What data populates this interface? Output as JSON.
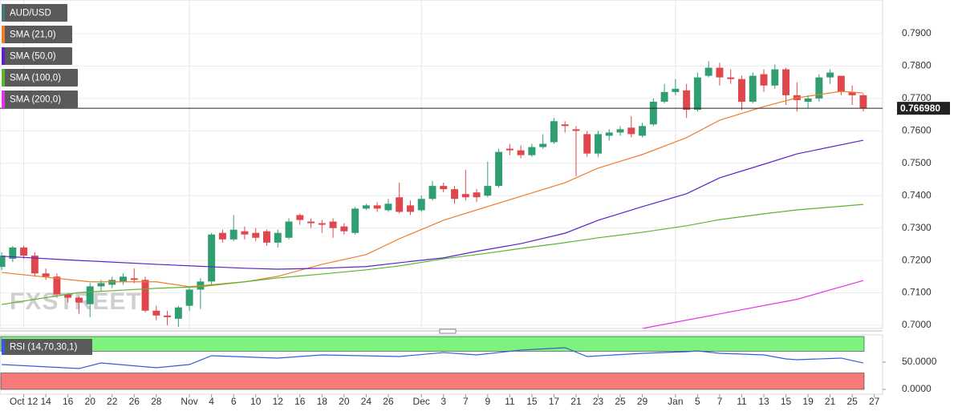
{
  "chart_data": [
    {
      "type": "candlestick",
      "watermark": "FXSTREET",
      "up_color": "#2f9e70",
      "down_color": "#e0474c",
      "xlim": [
        -0.15,
        79.75
      ],
      "ylim": [
        0.699,
        0.8004
      ],
      "yticks": [
        {
          "value": 0.7,
          "label": "0.7000"
        },
        {
          "value": 0.71,
          "label": "0.7100"
        },
        {
          "value": 0.72,
          "label": "0.7200"
        },
        {
          "value": 0.73,
          "label": "0.7300"
        },
        {
          "value": 0.74,
          "label": "0.7400"
        },
        {
          "value": 0.75,
          "label": "0.7500"
        },
        {
          "value": 0.76,
          "label": "0.7600"
        },
        {
          "value": 0.77,
          "label": "0.7700"
        },
        {
          "value": 0.78,
          "label": "0.7800"
        },
        {
          "value": 0.79,
          "label": "0.7900"
        }
      ],
      "xticks": [
        {
          "value": 2,
          "label": "Oct 12"
        },
        {
          "value": 4,
          "label": "14"
        },
        {
          "value": 6,
          "label": "16"
        },
        {
          "value": 8,
          "label": "20"
        },
        {
          "value": 10,
          "label": "22"
        },
        {
          "value": 12,
          "label": "26"
        },
        {
          "value": 14,
          "label": "28"
        },
        {
          "value": 17,
          "label": "Nov"
        },
        {
          "value": 19,
          "label": "4"
        },
        {
          "value": 21,
          "label": "6"
        },
        {
          "value": 23,
          "label": "10"
        },
        {
          "value": 25,
          "label": "12"
        },
        {
          "value": 27,
          "label": "16"
        },
        {
          "value": 29,
          "label": "18"
        },
        {
          "value": 31,
          "label": "20"
        },
        {
          "value": 33,
          "label": "24"
        },
        {
          "value": 35,
          "label": "26"
        },
        {
          "value": 38,
          "label": "Dec"
        },
        {
          "value": 40,
          "label": "3"
        },
        {
          "value": 42,
          "label": "7"
        },
        {
          "value": 44,
          "label": "9"
        },
        {
          "value": 46,
          "label": "11"
        },
        {
          "value": 48,
          "label": "15"
        },
        {
          "value": 50,
          "label": "17"
        },
        {
          "value": 52,
          "label": "21"
        },
        {
          "value": 54,
          "label": "23"
        },
        {
          "value": 56,
          "label": "25"
        },
        {
          "value": 58,
          "label": "29"
        },
        {
          "value": 61,
          "label": "Jan"
        },
        {
          "value": 63,
          "label": "5"
        },
        {
          "value": 65,
          "label": "7"
        },
        {
          "value": 67,
          "label": "11"
        },
        {
          "value": 69,
          "label": "13"
        },
        {
          "value": 71,
          "label": "15"
        },
        {
          "value": 73,
          "label": "19"
        },
        {
          "value": 75,
          "label": "21"
        },
        {
          "value": 77,
          "label": "25"
        },
        {
          "value": 79,
          "label": "27"
        }
      ],
      "grid": true,
      "price_line": {
        "value": 0.76698,
        "label": "0.766980"
      },
      "series": [
        {
          "name": "AUD/USD",
          "color": "#467a7a",
          "x": [
            0,
            1,
            2,
            3,
            4,
            5,
            6,
            7,
            8,
            9,
            10,
            11,
            12,
            13,
            14,
            15,
            16,
            17,
            18,
            19,
            20,
            21,
            22,
            23,
            24,
            25,
            26,
            27,
            28,
            29,
            30,
            31,
            32,
            33,
            34,
            35,
            36,
            37,
            38,
            39,
            40,
            41,
            42,
            43,
            44,
            45,
            46,
            47,
            48,
            49,
            50,
            51,
            52,
            53,
            54,
            55,
            56,
            57,
            58,
            59,
            60,
            61,
            62,
            63,
            64,
            65,
            66,
            67,
            68,
            69,
            70,
            71,
            72,
            73,
            74,
            75,
            76,
            77,
            78
          ],
          "open": [
            0.718,
            0.7205,
            0.724,
            0.7215,
            0.716,
            0.715,
            0.7095,
            0.7085,
            0.7065,
            0.712,
            0.7125,
            0.7135,
            0.7145,
            0.714,
            0.7045,
            0.703,
            0.702,
            0.706,
            0.711,
            0.7135,
            0.7285,
            0.7265,
            0.729,
            0.7285,
            0.729,
            0.7255,
            0.727,
            0.734,
            0.732,
            0.7315,
            0.732,
            0.7305,
            0.7285,
            0.736,
            0.737,
            0.7355,
            0.7395,
            0.737,
            0.7355,
            0.739,
            0.743,
            0.742,
            0.7405,
            0.741,
            0.74,
            0.743,
            0.7545,
            0.754,
            0.7525,
            0.755,
            0.7565,
            0.762,
            0.7605,
            0.759,
            0.753,
            0.7585,
            0.7595,
            0.761,
            0.7585,
            0.762,
            0.769,
            0.772,
            0.7725,
            0.7665,
            0.777,
            0.7795,
            0.7765,
            0.776,
            0.769,
            0.7775,
            0.774,
            0.779,
            0.771,
            0.769,
            0.77,
            0.7765,
            0.777,
            0.772,
            0.771
          ],
          "high": [
            0.7225,
            0.7245,
            0.7245,
            0.7225,
            0.7175,
            0.716,
            0.71,
            0.709,
            0.713,
            0.714,
            0.715,
            0.716,
            0.7175,
            0.715,
            0.706,
            0.7045,
            0.706,
            0.712,
            0.7145,
            0.7285,
            0.7295,
            0.734,
            0.7305,
            0.73,
            0.7295,
            0.7295,
            0.733,
            0.7345,
            0.733,
            0.7325,
            0.733,
            0.7315,
            0.7365,
            0.7375,
            0.738,
            0.739,
            0.744,
            0.7385,
            0.74,
            0.7445,
            0.744,
            0.743,
            0.748,
            0.742,
            0.7505,
            0.7545,
            0.756,
            0.7555,
            0.756,
            0.759,
            0.764,
            0.763,
            0.7615,
            0.76,
            0.76,
            0.7605,
            0.7615,
            0.7645,
            0.7625,
            0.77,
            0.7745,
            0.776,
            0.7745,
            0.778,
            0.7815,
            0.781,
            0.779,
            0.777,
            0.778,
            0.779,
            0.7805,
            0.7795,
            0.775,
            0.771,
            0.7775,
            0.779,
            0.777,
            0.774,
            0.7715
          ],
          "low": [
            0.717,
            0.7195,
            0.7205,
            0.715,
            0.714,
            0.7085,
            0.707,
            0.7035,
            0.7025,
            0.7105,
            0.7115,
            0.7125,
            0.713,
            0.704,
            0.7015,
            0.7,
            0.6995,
            0.7045,
            0.705,
            0.7125,
            0.7255,
            0.726,
            0.7265,
            0.726,
            0.7245,
            0.724,
            0.7265,
            0.731,
            0.73,
            0.7285,
            0.727,
            0.728,
            0.728,
            0.7355,
            0.735,
            0.735,
            0.7345,
            0.734,
            0.735,
            0.7385,
            0.741,
            0.7375,
            0.7385,
            0.738,
            0.7395,
            0.7425,
            0.7525,
            0.7515,
            0.752,
            0.7545,
            0.756,
            0.7595,
            0.746,
            0.752,
            0.752,
            0.757,
            0.7585,
            0.758,
            0.758,
            0.7615,
            0.7685,
            0.771,
            0.764,
            0.766,
            0.7765,
            0.774,
            0.7745,
            0.7665,
            0.7685,
            0.772,
            0.773,
            0.768,
            0.766,
            0.767,
            0.769,
            0.7745,
            0.771,
            0.768,
            0.766
          ],
          "close": [
            0.7215,
            0.724,
            0.7215,
            0.716,
            0.715,
            0.7095,
            0.7085,
            0.707,
            0.712,
            0.713,
            0.714,
            0.715,
            0.714,
            0.7045,
            0.703,
            0.7025,
            0.7055,
            0.711,
            0.7135,
            0.728,
            0.7265,
            0.7295,
            0.728,
            0.727,
            0.7255,
            0.7285,
            0.732,
            0.7325,
            0.7315,
            0.731,
            0.73,
            0.729,
            0.736,
            0.737,
            0.736,
            0.7375,
            0.735,
            0.735,
            0.739,
            0.743,
            0.742,
            0.739,
            0.7395,
            0.7395,
            0.743,
            0.7535,
            0.754,
            0.7525,
            0.755,
            0.756,
            0.763,
            0.7615,
            0.76,
            0.753,
            0.759,
            0.7595,
            0.7605,
            0.759,
            0.7615,
            0.769,
            0.772,
            0.773,
            0.7665,
            0.7765,
            0.7795,
            0.7765,
            0.776,
            0.769,
            0.777,
            0.774,
            0.779,
            0.771,
            0.7695,
            0.77,
            0.7765,
            0.778,
            0.772,
            0.771,
            0.76698
          ]
        },
        {
          "name": "SMA (21,0)",
          "color": "#f07d2b",
          "x": [
            0,
            8,
            14,
            17,
            22,
            25,
            29,
            33,
            36,
            40,
            43,
            47,
            51,
            54,
            58,
            62,
            65,
            69,
            72,
            76,
            78
          ],
          "values": [
            0.7163,
            0.7134,
            0.7134,
            0.7119,
            0.7134,
            0.7151,
            0.7188,
            0.7218,
            0.7267,
            0.7324,
            0.7356,
            0.7398,
            0.744,
            0.7485,
            0.7527,
            0.7579,
            0.7633,
            0.7675,
            0.7702,
            0.7722,
            0.7717
          ]
        },
        {
          "name": "SMA (50,0)",
          "color": "#5b22c9",
          "x": [
            0,
            7,
            14,
            22,
            25,
            29,
            33,
            36,
            40,
            43,
            47,
            51,
            54,
            58,
            62,
            65,
            69,
            72,
            78
          ],
          "values": [
            0.7213,
            0.72,
            0.7188,
            0.7176,
            0.7173,
            0.7176,
            0.7181,
            0.7193,
            0.7208,
            0.7228,
            0.7252,
            0.7284,
            0.7324,
            0.7366,
            0.7406,
            0.7455,
            0.7497,
            0.7529,
            0.7571
          ]
        },
        {
          "name": "SMA (100,0)",
          "color": "#5cb531",
          "x": [
            0,
            7,
            14,
            18,
            22,
            25,
            29,
            33,
            36,
            40,
            43,
            47,
            51,
            54,
            58,
            62,
            65,
            69,
            72,
            78
          ],
          "values": [
            0.7064,
            0.7101,
            0.7114,
            0.7119,
            0.7134,
            0.7146,
            0.7158,
            0.7171,
            0.7183,
            0.7205,
            0.7218,
            0.7237,
            0.7255,
            0.727,
            0.7287,
            0.7307,
            0.7326,
            0.7344,
            0.7356,
            0.7373
          ]
        },
        {
          "name": "SMA (200,0)",
          "color": "#e632e6",
          "x": [
            58,
            65,
            72,
            78
          ],
          "values": [
            0.699,
            0.7035,
            0.708,
            0.7138
          ]
        }
      ]
    },
    {
      "type": "line",
      "xlim": [
        -0.15,
        79.75
      ],
      "ylim": [
        -8.8,
        100
      ],
      "yticks": [
        {
          "value": 50,
          "label": "50.0000"
        },
        {
          "value": 0,
          "label": "0.0000"
        }
      ],
      "bands": [
        {
          "from": 70,
          "to": 97,
          "color": "#7ef27e"
        },
        {
          "from": 0,
          "to": 30,
          "color": "#f77a7a"
        }
      ],
      "series": [
        {
          "name": "RSI (14,70,30,1)",
          "color": "#3a5bd9",
          "x": [
            0,
            7,
            9,
            14,
            17,
            19,
            25,
            29,
            36,
            40,
            43,
            47,
            51,
            53,
            58,
            62,
            63,
            65,
            69,
            71,
            72,
            76,
            78
          ],
          "values": [
            45.6,
            38.2,
            48.5,
            39.7,
            45.6,
            61.8,
            57.4,
            63.2,
            60.3,
            67.6,
            63.2,
            72.1,
            76.5,
            60.3,
            66.2,
            69.1,
            70.6,
            66.2,
            63.2,
            55.9,
            54.4,
            57.4,
            48.5
          ]
        }
      ]
    }
  ]
}
